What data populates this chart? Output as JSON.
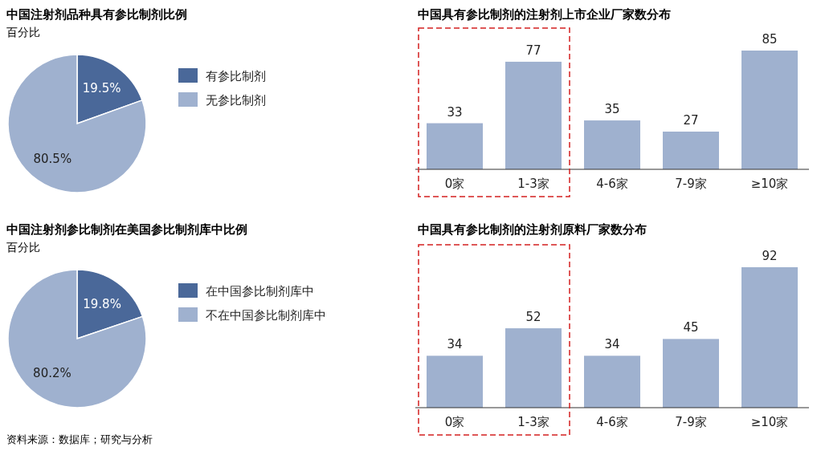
{
  "chart_data": [
    {
      "type": "pie",
      "title": "中国注射剂品种具有参比制剂比例",
      "subtitle": "百分比",
      "categories": [
        "有参比制剂",
        "无参比制剂"
      ],
      "values": [
        19.5,
        80.5
      ],
      "colors": [
        "#4a6899",
        "#9fb1cf"
      ],
      "value_labels": [
        "19.5%",
        "80.5%"
      ],
      "legend": "right"
    },
    {
      "type": "bar",
      "title": "中国具有参比制剂的注射剂上市企业厂家数分布",
      "categories": [
        "0家",
        "1-3家",
        "4-6家",
        "7-9家",
        "≥10家"
      ],
      "values": [
        33,
        77,
        35,
        27,
        85
      ],
      "color": "#9fb1cf",
      "data_labels": true
    },
    {
      "type": "pie",
      "title": "中国注射剂参比制剂在美国参比制剂库中比例",
      "subtitle": "百分比",
      "categories": [
        "在中国参比制剂库中",
        "不在中国参比制剂库中"
      ],
      "values": [
        19.8,
        80.2
      ],
      "colors": [
        "#4a6899",
        "#9fb1cf"
      ],
      "value_labels": [
        "19.8%",
        "80.2%"
      ],
      "legend": "right",
      "annotations": [
        "资料来源：数据库；研究与分析"
      ]
    },
    {
      "type": "bar",
      "title": "中国具有参比制剂的注射剂原料厂家数分布",
      "categories": [
        "0家",
        "1-3家",
        "4-6家",
        "7-9家",
        "≥10家"
      ],
      "values": [
        34,
        52,
        34,
        45,
        92
      ],
      "color": "#9fb1cf",
      "data_labels": true
    }
  ]
}
